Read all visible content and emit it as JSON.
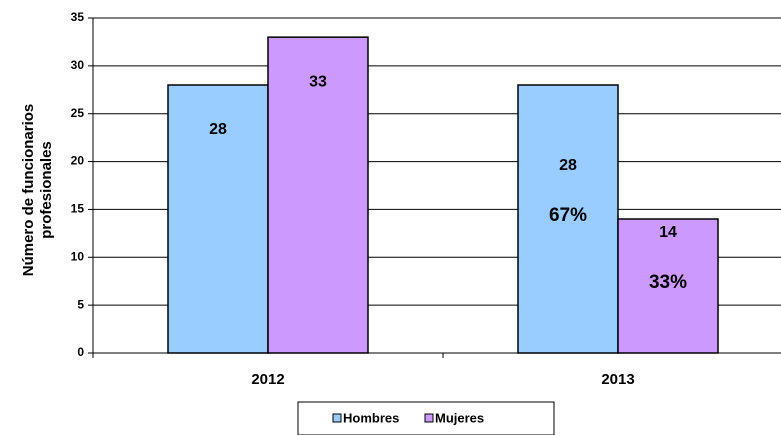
{
  "chart_data": {
    "type": "bar",
    "y_label": "Número de funcionarios profesionales",
    "categories": [
      "2012",
      "2013"
    ],
    "series": [
      {
        "name": "Hombres",
        "color": "#99ccff",
        "values": [
          28,
          28
        ]
      },
      {
        "name": "Mujeres",
        "color": "#cc99ff",
        "values": [
          33,
          14
        ]
      }
    ],
    "annotations": [
      "67%",
      "33%"
    ],
    "ylim": [
      0,
      35
    ],
    "yticks": [
      0,
      5,
      10,
      15,
      20,
      25,
      30,
      35
    ],
    "grid": true,
    "legend": "bottom"
  }
}
